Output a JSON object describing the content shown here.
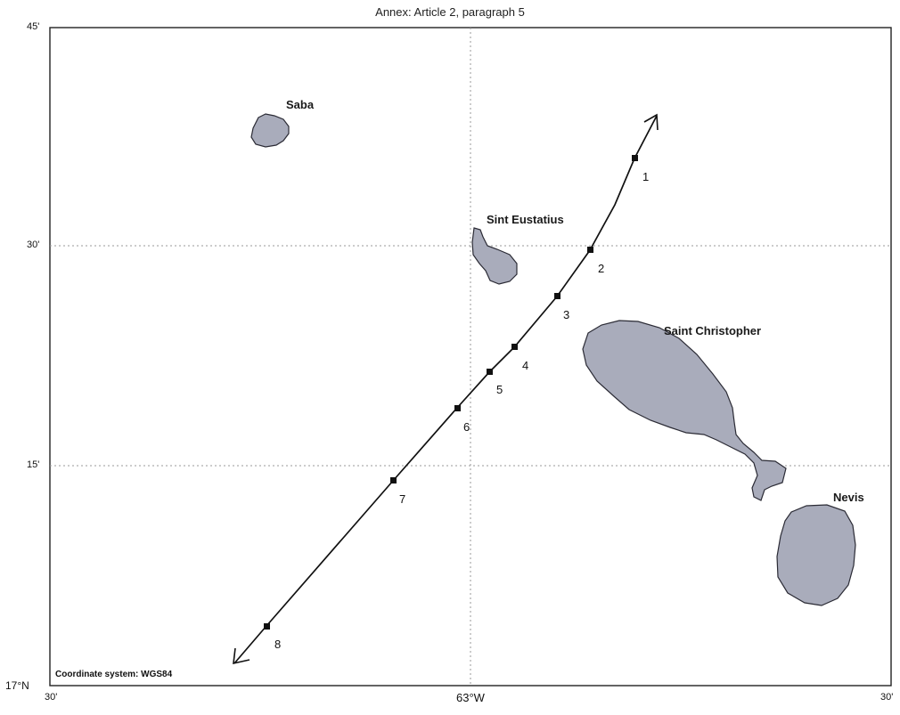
{
  "title": "Annex: Article 2, paragraph 5",
  "coordinate_system": "Coordinate system: WGS84",
  "axes": {
    "lat_ticks": [
      "45'",
      "30'",
      "15'"
    ],
    "lat_origin": "17°N",
    "lon_ticks": [
      "30'",
      "63°W",
      "30'"
    ]
  },
  "islands": [
    {
      "name": "Saba"
    },
    {
      "name": "Sint Eustatius"
    },
    {
      "name": "Saint Christopher"
    },
    {
      "name": "Nevis"
    }
  ],
  "boundary_points": [
    "1",
    "2",
    "3",
    "4",
    "5",
    "6",
    "7",
    "8"
  ],
  "colors": {
    "land_fill": "#a9acbb",
    "land_stroke": "#2b2b35",
    "grid": "#9a9a9a",
    "line": "#111111"
  }
}
